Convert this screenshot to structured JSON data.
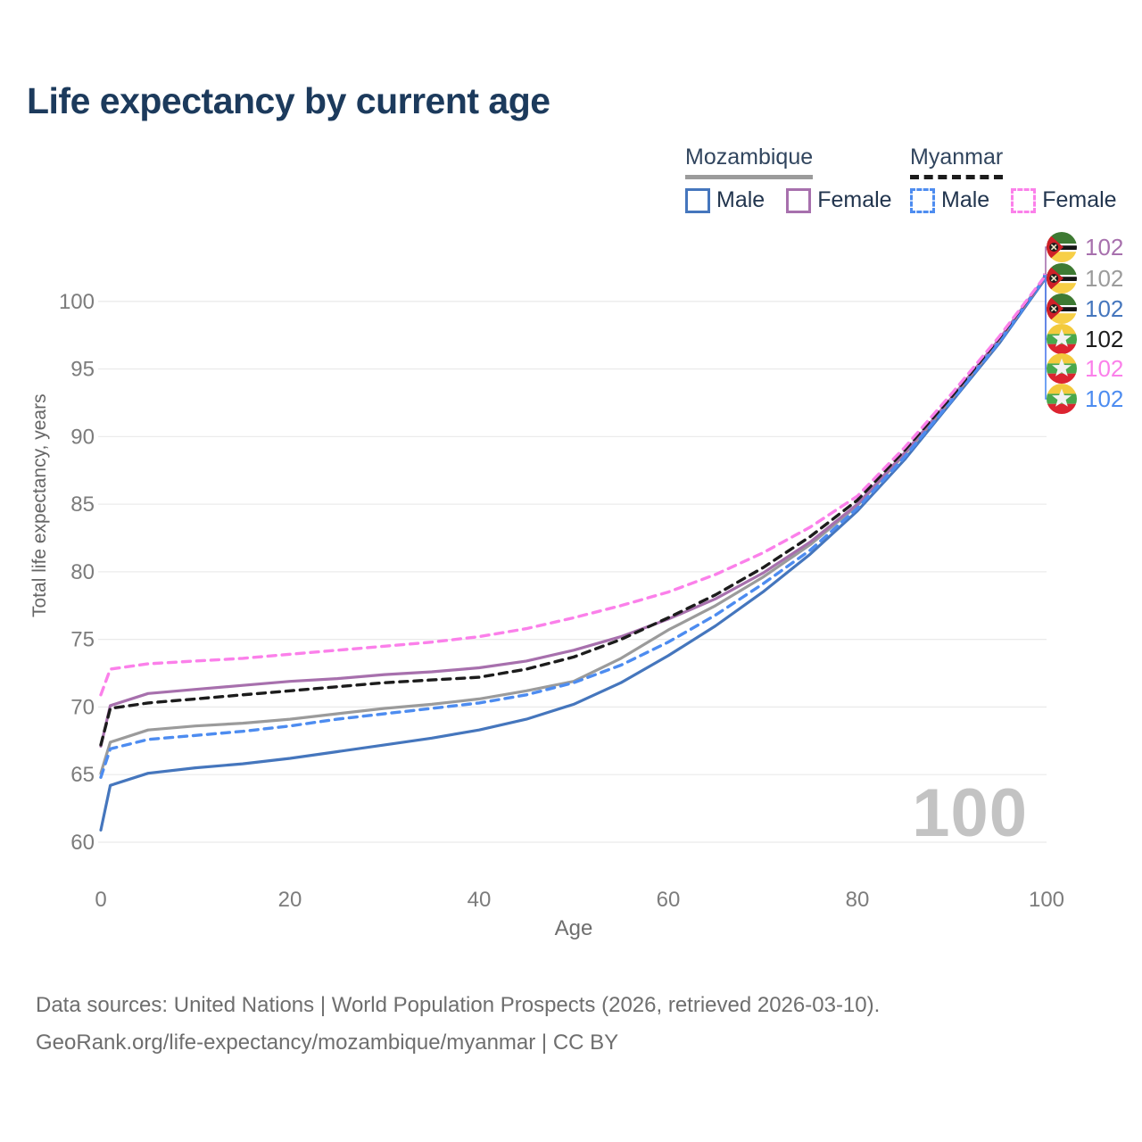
{
  "title": "Life expectancy by current age",
  "legend": {
    "groups": [
      {
        "label": "Mozambique",
        "line_style": "solid",
        "underline_color": "#9b9b9b",
        "items": [
          {
            "label": "Male",
            "color": "#4576bd",
            "dashed": false
          },
          {
            "label": "Female",
            "color": "#a770ad",
            "dashed": false
          }
        ]
      },
      {
        "label": "Myanmar",
        "line_style": "dashed",
        "underline_color": "#1c1c1c",
        "items": [
          {
            "label": "Male",
            "color": "#4d8cf0",
            "dashed": true
          },
          {
            "label": "Female",
            "color": "#fb80ea",
            "dashed": true
          }
        ]
      }
    ]
  },
  "chart_data": {
    "type": "line",
    "title": "Life expectancy by current age",
    "xlabel": "Age",
    "ylabel": "Total life expectancy, years",
    "x_ticks": [
      0,
      20,
      40,
      60,
      80,
      100
    ],
    "y_ticks": [
      60,
      65,
      70,
      75,
      80,
      85,
      90,
      95,
      100
    ],
    "xlim": [
      0,
      100
    ],
    "ylim": [
      60,
      102.5
    ],
    "grid": "horizontal-only",
    "legend_position": "top-right",
    "x": [
      0,
      1,
      5,
      10,
      15,
      20,
      25,
      30,
      35,
      40,
      45,
      50,
      55,
      60,
      65,
      70,
      75,
      80,
      85,
      90,
      95,
      100
    ],
    "series": [
      {
        "name": "Mozambique Male",
        "country": "mozambique",
        "sex": "male",
        "color": "#4576bd",
        "dashed": false,
        "end_label": "102",
        "values": [
          60.9,
          64.2,
          65.1,
          65.5,
          65.8,
          66.2,
          66.7,
          67.2,
          67.7,
          68.3,
          69.1,
          70.2,
          71.8,
          73.8,
          76.0,
          78.5,
          81.3,
          84.5,
          88.3,
          92.6,
          96.9,
          101.8
        ]
      },
      {
        "name": "Mozambique (both sexes)",
        "country": "mozambique",
        "sex": "both",
        "color": "#9b9b9b",
        "dashed": false,
        "end_label": "102",
        "values": [
          65.1,
          67.4,
          68.3,
          68.6,
          68.8,
          69.1,
          69.5,
          69.9,
          70.2,
          70.6,
          71.2,
          71.9,
          73.6,
          75.7,
          77.5,
          79.6,
          82.0,
          84.9,
          88.7,
          92.8,
          97.1,
          101.9
        ]
      },
      {
        "name": "Mozambique Female",
        "country": "mozambique",
        "sex": "female",
        "color": "#a770ad",
        "dashed": false,
        "end_label": "102",
        "values": [
          67.1,
          70.1,
          71.0,
          71.3,
          71.6,
          71.9,
          72.1,
          72.4,
          72.6,
          72.9,
          73.4,
          74.2,
          75.2,
          76.5,
          78.0,
          79.9,
          82.2,
          85.0,
          88.8,
          92.9,
          97.2,
          101.9
        ]
      },
      {
        "name": "Myanmar Male",
        "country": "myanmar",
        "sex": "male",
        "color": "#4d8cf0",
        "dashed": true,
        "end_label": "102",
        "values": [
          64.8,
          66.9,
          67.6,
          67.9,
          68.2,
          68.6,
          69.1,
          69.5,
          69.9,
          70.3,
          70.9,
          71.8,
          73.1,
          74.8,
          76.8,
          79.1,
          81.6,
          84.7,
          88.5,
          92.7,
          97.0,
          101.9
        ]
      },
      {
        "name": "Myanmar (both sexes)",
        "country": "myanmar",
        "sex": "both",
        "color": "#1c1c1c",
        "dashed": true,
        "end_label": "102",
        "values": [
          67.2,
          69.9,
          70.3,
          70.6,
          70.9,
          71.2,
          71.5,
          71.8,
          72.0,
          72.2,
          72.8,
          73.7,
          75.0,
          76.6,
          78.3,
          80.3,
          82.6,
          85.3,
          89.0,
          93.0,
          97.3,
          102.0
        ]
      },
      {
        "name": "Myanmar Female",
        "country": "myanmar",
        "sex": "female",
        "color": "#fb80ea",
        "dashed": true,
        "end_label": "102",
        "values": [
          70.9,
          72.8,
          73.2,
          73.4,
          73.6,
          73.9,
          74.2,
          74.5,
          74.8,
          75.2,
          75.8,
          76.6,
          77.5,
          78.5,
          79.8,
          81.4,
          83.3,
          85.6,
          89.2,
          93.2,
          97.4,
          102.0
        ]
      }
    ],
    "hover_age_watermark": "100"
  },
  "end_labels": [
    {
      "flag": "mozambique",
      "value": "102",
      "color": "#a770ad"
    },
    {
      "flag": "mozambique",
      "value": "102",
      "color": "#9b9b9b"
    },
    {
      "flag": "mozambique",
      "value": "102",
      "color": "#4576bd"
    },
    {
      "flag": "myanmar",
      "value": "102",
      "color": "#1c1c1c"
    },
    {
      "flag": "myanmar",
      "value": "102",
      "color": "#fb80ea"
    },
    {
      "flag": "myanmar",
      "value": "102",
      "color": "#4d8cf0"
    }
  ],
  "footer": {
    "line1": "Data sources: United Nations | World Population Prospects (2026, retrieved 2026-03-10).",
    "line2": "GeoRank.org/life-expectancy/mozambique/myanmar | CC BY"
  }
}
